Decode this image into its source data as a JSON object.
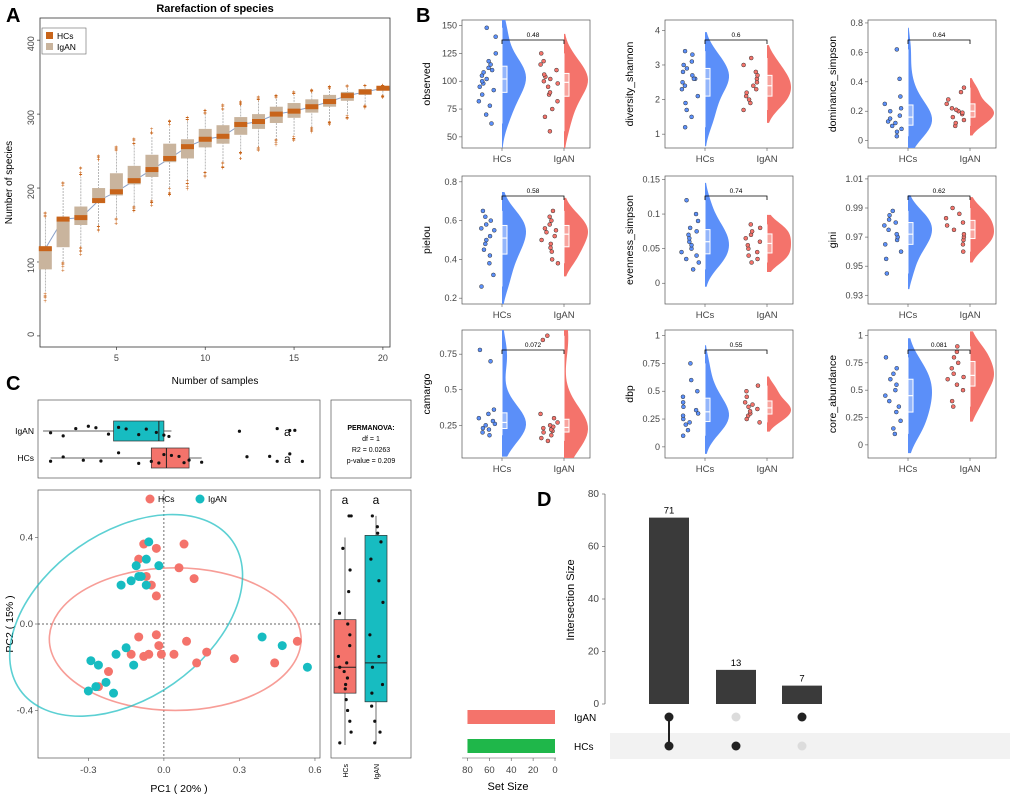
{
  "panel_letters": [
    "A",
    "B",
    "C",
    "D"
  ],
  "chart_data": [
    {
      "panel": "A",
      "type": "box",
      "title": "Rarefaction of species",
      "xlabel": "Number of samples",
      "ylabel": "Number of species",
      "xlim": [
        0,
        20
      ],
      "ylim": [
        0,
        420
      ],
      "xticks": [
        5,
        10,
        15,
        20
      ],
      "yticks": [
        0,
        100,
        200,
        300,
        400
      ],
      "legend": [
        {
          "name": "HCs",
          "color": "#c8641a"
        },
        {
          "name": "IgAN",
          "color": "#c9b49d"
        }
      ],
      "legend_position": "top-left",
      "boxes": [
        {
          "n": 1,
          "q1": 90,
          "median": 118,
          "q3": 120,
          "wlo": 60,
          "whi": 160
        },
        {
          "n": 2,
          "q1": 120,
          "median": 158,
          "q3": 160,
          "wlo": 100,
          "whi": 200
        },
        {
          "n": 3,
          "q1": 150,
          "median": 160,
          "q3": 175,
          "wlo": 120,
          "whi": 215
        },
        {
          "n": 4,
          "q1": 180,
          "median": 183,
          "q3": 200,
          "wlo": 150,
          "whi": 235
        },
        {
          "n": 5,
          "q1": 190,
          "median": 195,
          "q3": 220,
          "wlo": 160,
          "whi": 248
        },
        {
          "n": 6,
          "q1": 205,
          "median": 210,
          "q3": 230,
          "wlo": 175,
          "whi": 258
        },
        {
          "n": 7,
          "q1": 215,
          "median": 225,
          "q3": 245,
          "wlo": 185,
          "whi": 270
        },
        {
          "n": 8,
          "q1": 235,
          "median": 240,
          "q3": 260,
          "wlo": 200,
          "whi": 282
        },
        {
          "n": 9,
          "q1": 240,
          "median": 256,
          "q3": 266,
          "wlo": 210,
          "whi": 290
        },
        {
          "n": 10,
          "q1": 255,
          "median": 266,
          "q3": 280,
          "wlo": 225,
          "whi": 300
        },
        {
          "n": 11,
          "q1": 260,
          "median": 270,
          "q3": 285,
          "wlo": 235,
          "whi": 305
        },
        {
          "n": 12,
          "q1": 272,
          "median": 286,
          "q3": 296,
          "wlo": 248,
          "whi": 312
        },
        {
          "n": 13,
          "q1": 280,
          "median": 290,
          "q3": 300,
          "wlo": 255,
          "whi": 318
        },
        {
          "n": 14,
          "q1": 288,
          "median": 300,
          "q3": 310,
          "wlo": 265,
          "whi": 322
        },
        {
          "n": 15,
          "q1": 295,
          "median": 304,
          "q3": 315,
          "wlo": 272,
          "whi": 326
        },
        {
          "n": 16,
          "q1": 302,
          "median": 310,
          "q3": 320,
          "wlo": 282,
          "whi": 330
        },
        {
          "n": 17,
          "q1": 310,
          "median": 317,
          "q3": 326,
          "wlo": 292,
          "whi": 334
        },
        {
          "n": 18,
          "q1": 318,
          "median": 325,
          "q3": 330,
          "wlo": 300,
          "whi": 336
        },
        {
          "n": 19,
          "q1": 326,
          "median": 330,
          "q3": 334,
          "wlo": 312,
          "whi": 337
        },
        {
          "n": 20,
          "q1": 332,
          "median": 335,
          "q3": 336,
          "wlo": 325,
          "whi": 338
        }
      ]
    },
    {
      "panel": "B",
      "type": "raincloud",
      "groups": [
        "HCs",
        "IgAN"
      ],
      "group_colors": [
        "#5b8ff9",
        "#f4736b"
      ],
      "subplots": [
        {
          "ylabel": "observed",
          "ylim": [
            40,
            155
          ],
          "yticks": [
            50,
            75,
            100,
            125,
            150
          ],
          "p": "0.48",
          "HCs": [
            62,
            70,
            78,
            82,
            88,
            92,
            95,
            98,
            100,
            102,
            105,
            108,
            110,
            112,
            115,
            118,
            125,
            140,
            148
          ],
          "IgAN": [
            55,
            68,
            75,
            82,
            88,
            90,
            95,
            98,
            100,
            102,
            104,
            106,
            110,
            115,
            118,
            125
          ]
        },
        {
          "ylabel": "diversity_shannon",
          "ylim": [
            0.6,
            4.3
          ],
          "yticks": [
            1,
            2,
            3,
            4
          ],
          "p": "0.6",
          "HCs": [
            1.2,
            1.5,
            1.7,
            1.9,
            2.1,
            2.3,
            2.4,
            2.5,
            2.6,
            2.6,
            2.7,
            2.8,
            2.9,
            3.0,
            3.1,
            3.3,
            3.4
          ],
          "IgAN": [
            1.7,
            1.9,
            2.0,
            2.1,
            2.2,
            2.3,
            2.4,
            2.5,
            2.6,
            2.7,
            2.8,
            3.0,
            3.2
          ]
        },
        {
          "ylabel": "dominance_simpson",
          "ylim": [
            -0.05,
            0.82
          ],
          "yticks": [
            0.0,
            0.2,
            0.4,
            0.6,
            0.8
          ],
          "p": "0.64",
          "HCs": [
            0.03,
            0.06,
            0.08,
            0.1,
            0.12,
            0.13,
            0.15,
            0.17,
            0.2,
            0.22,
            0.25,
            0.3,
            0.42,
            0.62
          ],
          "IgAN": [
            0.1,
            0.12,
            0.14,
            0.16,
            0.18,
            0.19,
            0.2,
            0.21,
            0.22,
            0.25,
            0.28,
            0.33,
            0.36
          ]
        },
        {
          "ylabel": "pielou",
          "ylim": [
            0.17,
            0.83
          ],
          "yticks": [
            0.2,
            0.4,
            0.6,
            0.8
          ],
          "p": "0.58",
          "HCs": [
            0.26,
            0.32,
            0.38,
            0.42,
            0.45,
            0.48,
            0.5,
            0.52,
            0.55,
            0.56,
            0.58,
            0.6,
            0.62,
            0.65
          ],
          "IgAN": [
            0.38,
            0.4,
            0.44,
            0.46,
            0.48,
            0.5,
            0.52,
            0.54,
            0.55,
            0.56,
            0.58,
            0.6,
            0.62,
            0.65
          ]
        },
        {
          "ylabel": "evenness_simpson",
          "ylim": [
            -0.03,
            0.155
          ],
          "yticks": [
            0.0,
            0.05,
            0.1,
            0.15
          ],
          "p": "0.74",
          "HCs": [
            0.02,
            0.03,
            0.035,
            0.04,
            0.045,
            0.05,
            0.055,
            0.06,
            0.065,
            0.07,
            0.075,
            0.08,
            0.09,
            0.1,
            0.12
          ],
          "IgAN": [
            0.03,
            0.035,
            0.04,
            0.045,
            0.05,
            0.055,
            0.06,
            0.065,
            0.07,
            0.075,
            0.08,
            0.085
          ]
        },
        {
          "ylabel": "gini",
          "ylim": [
            0.924,
            1.012
          ],
          "yticks": [
            0.93,
            0.95,
            0.97,
            0.99,
            1.01
          ],
          "p": "0.62",
          "HCs": [
            0.945,
            0.955,
            0.96,
            0.965,
            0.968,
            0.97,
            0.972,
            0.975,
            0.978,
            0.98,
            0.982,
            0.985,
            0.988
          ],
          "IgAN": [
            0.96,
            0.965,
            0.968,
            0.97,
            0.972,
            0.975,
            0.978,
            0.98,
            0.983,
            0.986,
            0.99
          ]
        },
        {
          "ylabel": "camargo",
          "ylim": [
            0.02,
            0.92
          ],
          "yticks": [
            0.25,
            0.5,
            0.75
          ],
          "p": "0.072",
          "HCs": [
            0.18,
            0.2,
            0.22,
            0.23,
            0.25,
            0.26,
            0.28,
            0.3,
            0.33,
            0.36,
            0.7,
            0.78
          ],
          "IgAN": [
            0.14,
            0.16,
            0.18,
            0.2,
            0.21,
            0.22,
            0.23,
            0.24,
            0.25,
            0.27,
            0.3,
            0.33,
            0.85,
            0.88
          ]
        },
        {
          "ylabel": "dbp",
          "ylim": [
            -0.1,
            1.05
          ],
          "yticks": [
            0.0,
            0.25,
            0.5,
            0.75,
            1.0
          ],
          "p": "0.55",
          "HCs": [
            0.1,
            0.15,
            0.2,
            0.22,
            0.25,
            0.28,
            0.3,
            0.33,
            0.36,
            0.4,
            0.45,
            0.5,
            0.6,
            0.75
          ],
          "IgAN": [
            0.22,
            0.25,
            0.28,
            0.3,
            0.32,
            0.34,
            0.36,
            0.38,
            0.4,
            0.45,
            0.5,
            0.55
          ]
        },
        {
          "ylabel": "core_abundance",
          "ylim": [
            -0.12,
            1.05
          ],
          "yticks": [
            0.0,
            0.25,
            0.5,
            0.75,
            1.0
          ],
          "p": "0.081",
          "HCs": [
            0.1,
            0.15,
            0.22,
            0.3,
            0.35,
            0.4,
            0.45,
            0.5,
            0.55,
            0.6,
            0.65,
            0.7,
            0.8
          ],
          "IgAN": [
            0.35,
            0.4,
            0.5,
            0.55,
            0.6,
            0.62,
            0.65,
            0.7,
            0.75,
            0.8,
            0.85,
            0.9
          ]
        }
      ]
    },
    {
      "panel": "C",
      "type": "scatter",
      "xlabel": "PC1 ( 20% )",
      "ylabel": "PC2 ( 15% )",
      "xlim": [
        -0.5,
        0.62
      ],
      "ylim": [
        -0.62,
        0.62
      ],
      "xticks": [
        -0.3,
        0.0,
        0.3,
        0.6
      ],
      "yticks": [
        -0.4,
        0.0,
        0.4
      ],
      "legend": [
        {
          "name": "HCs",
          "color": "#f4736b"
        },
        {
          "name": "IgAN",
          "color": "#17bcc1"
        }
      ],
      "permanova": {
        "title": "PERMANOVA:",
        "df": "df = 1",
        "r2": "R2 = 0.0263",
        "p": "p-value = 0.209"
      },
      "top_box": {
        "groups": [
          "IgAN",
          "HCs"
        ],
        "letters": [
          "a",
          "a"
        ],
        "IgAN": {
          "q1": -0.2,
          "median": -0.02,
          "q3": 0.0,
          "wlo": -0.48,
          "whi": 0.03,
          "points": [
            -0.45,
            -0.4,
            -0.35,
            -0.3,
            -0.27,
            -0.22,
            -0.18,
            -0.15,
            -0.1,
            -0.07,
            -0.03,
            0.0,
            0.02,
            0.3,
            0.45,
            0.5,
            0.52
          ]
        },
        "HCs": {
          "q1": -0.05,
          "median": 0.01,
          "q3": 0.1,
          "wlo": -0.45,
          "whi": 0.15,
          "points": [
            -0.45,
            -0.4,
            -0.32,
            -0.25,
            -0.18,
            -0.1,
            -0.05,
            -0.02,
            0.0,
            0.03,
            0.06,
            0.08,
            0.1,
            0.15,
            0.33,
            0.42,
            0.45,
            0.5,
            0.55
          ]
        }
      },
      "right_box": {
        "groups": [
          "HCs",
          "IgAN"
        ],
        "letters": [
          "a",
          "a"
        ],
        "HCs": {
          "q1": -0.32,
          "median": -0.2,
          "q3": 0.02,
          "wlo": -0.56,
          "whi": 0.4,
          "points": [
            -0.55,
            -0.5,
            -0.45,
            -0.4,
            -0.35,
            -0.3,
            -0.28,
            -0.25,
            -0.22,
            -0.2,
            -0.18,
            -0.15,
            -0.1,
            -0.05,
            0.0,
            0.05,
            0.15,
            0.25,
            0.35,
            0.5,
            0.5
          ]
        },
        "IgAN": {
          "q1": -0.36,
          "median": -0.18,
          "q3": 0.41,
          "wlo": -0.55,
          "whi": 0.5,
          "points": [
            -0.55,
            -0.5,
            -0.45,
            -0.38,
            -0.32,
            -0.28,
            -0.2,
            -0.15,
            -0.05,
            0.1,
            0.2,
            0.3,
            0.38,
            0.42,
            0.45,
            0.5
          ]
        }
      },
      "series": [
        {
          "name": "HCs",
          "points": [
            [
              -0.08,
              0.37
            ],
            [
              -0.03,
              0.35
            ],
            [
              0.08,
              0.37
            ],
            [
              -0.1,
              0.3
            ],
            [
              0.06,
              0.26
            ],
            [
              -0.07,
              0.22
            ],
            [
              0.12,
              0.21
            ],
            [
              -0.05,
              0.18
            ],
            [
              -0.03,
              0.13
            ],
            [
              -0.1,
              -0.06
            ],
            [
              -0.03,
              -0.05
            ],
            [
              -0.02,
              -0.1
            ],
            [
              -0.08,
              -0.15
            ],
            [
              -0.13,
              -0.14
            ],
            [
              -0.06,
              -0.14
            ],
            [
              -0.01,
              -0.14
            ],
            [
              0.09,
              -0.08
            ],
            [
              0.17,
              -0.13
            ],
            [
              0.13,
              -0.18
            ],
            [
              0.28,
              -0.16
            ],
            [
              0.44,
              -0.18
            ],
            [
              0.53,
              -0.08
            ],
            [
              -0.22,
              -0.22
            ],
            [
              -0.26,
              -0.29
            ],
            [
              0.04,
              -0.14
            ]
          ]
        },
        {
          "name": "IgAN",
          "points": [
            [
              -0.06,
              0.38
            ],
            [
              -0.07,
              0.3
            ],
            [
              -0.11,
              0.27
            ],
            [
              -0.02,
              0.27
            ],
            [
              -0.09,
              0.22
            ],
            [
              -0.1,
              0.22
            ],
            [
              -0.13,
              0.2
            ],
            [
              -0.07,
              0.18
            ],
            [
              -0.17,
              0.18
            ],
            [
              -0.15,
              -0.11
            ],
            [
              -0.19,
              -0.14
            ],
            [
              -0.12,
              -0.19
            ],
            [
              -0.29,
              -0.17
            ],
            [
              -0.26,
              -0.19
            ],
            [
              -0.27,
              -0.29
            ],
            [
              -0.23,
              -0.27
            ],
            [
              -0.3,
              -0.31
            ],
            [
              -0.2,
              -0.32
            ],
            [
              0.39,
              -0.06
            ],
            [
              0.47,
              -0.1
            ],
            [
              0.57,
              -0.2
            ]
          ]
        }
      ],
      "ellipses": [
        {
          "name": "HCs",
          "cx": 0.045,
          "cy": -0.07,
          "rx": 0.5,
          "ry": 0.33,
          "angle": 0
        },
        {
          "name": "IgAN",
          "cx": -0.15,
          "cy": 0.04,
          "rx": 0.33,
          "ry": 0.6,
          "angle": 55
        }
      ]
    },
    {
      "panel": "D",
      "type": "bar",
      "ylabel": "Intersection Size",
      "ylim": [
        0,
        80
      ],
      "yticks": [
        0,
        20,
        40,
        60,
        80
      ],
      "values": [
        71,
        13,
        7
      ],
      "value_labels": [
        "71",
        "13",
        "7"
      ],
      "set_names": [
        "IgAN",
        "HCs"
      ],
      "set_colors": [
        "#f4736b",
        "#1fb74a"
      ],
      "set_sizes": [
        80,
        80
      ],
      "set_size_label": "Set Size",
      "set_size_ticks": [
        "80",
        "60",
        "40",
        "20",
        "0"
      ],
      "matrix": [
        [
          1,
          1
        ],
        [
          0,
          1
        ],
        [
          1,
          0
        ]
      ]
    }
  ]
}
